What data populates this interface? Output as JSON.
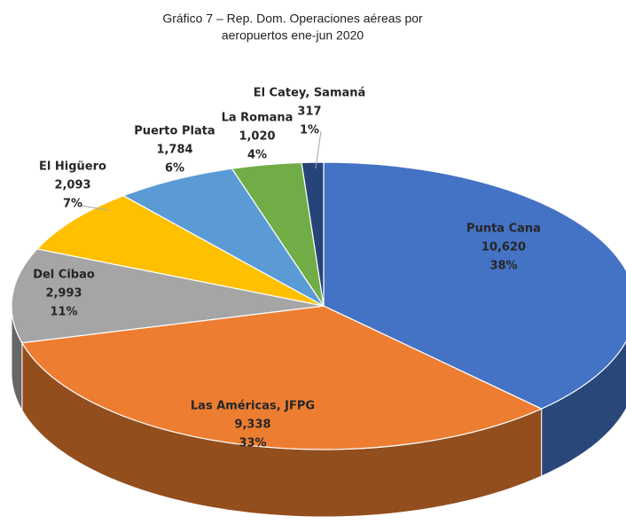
{
  "chart_data": {
    "type": "pie3d",
    "title": [
      "Gráfico 7 – Rep. Dom. Operaciones aéreas por",
      "aeropuertos ene-jun 2020"
    ],
    "categories": [
      "Punta Cana",
      "Las Américas, JFPG",
      "Del Cibao",
      "El Higüero",
      "Puerto Plata",
      "La Romana",
      "El Catey, Samaná"
    ],
    "values": [
      10620,
      9338,
      2993,
      2093,
      1784,
      1020,
      317
    ],
    "value_labels": [
      "10,620",
      "9,338",
      "2,993",
      "2,093",
      "1,784",
      "1,020",
      "317"
    ],
    "percents": [
      38,
      33,
      11,
      7,
      6,
      4,
      1
    ],
    "percent_labels": [
      "38%",
      "33%",
      "11%",
      "7%",
      "6%",
      "4%",
      "1%"
    ],
    "colors": [
      "#4472c4",
      "#ed7d31",
      "#a5a5a5",
      "#ffc000",
      "#5b9bd5",
      "#70ad47",
      "#264478"
    ]
  }
}
